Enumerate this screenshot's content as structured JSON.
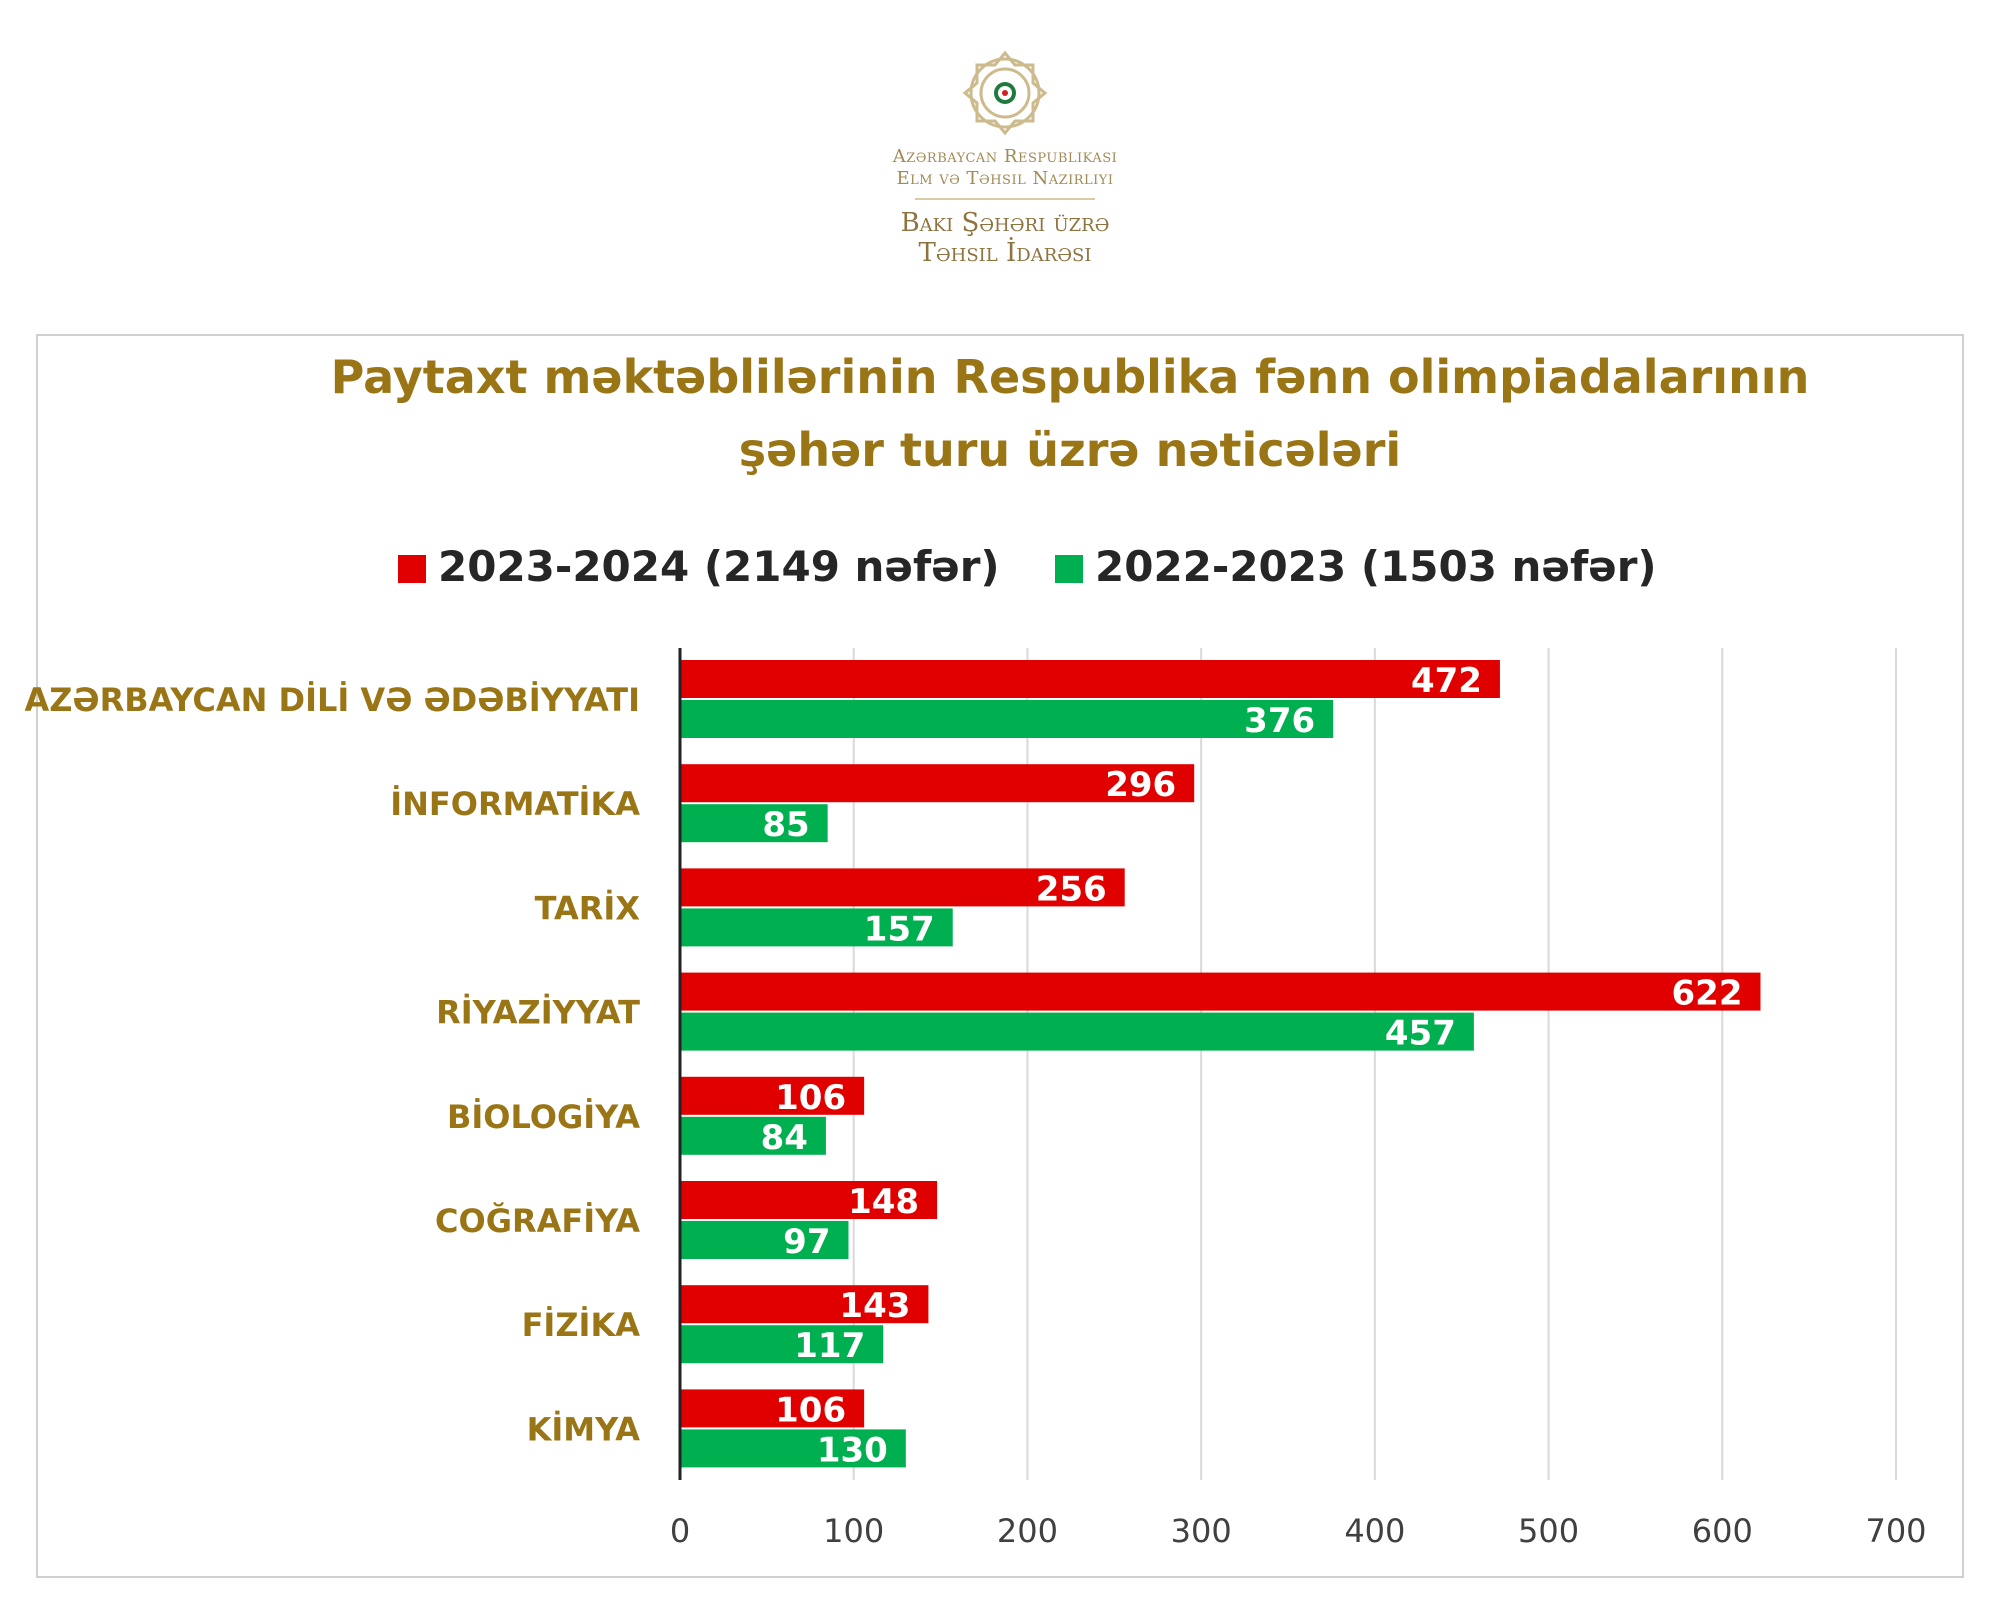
{
  "logo": {
    "line1": "Azərbaycan Respublikası",
    "line2": "Elm və Təhsil Nazirliyi",
    "line3": "Bakı Şəhəri üzrə",
    "line4": "Təhsil İdarəsi"
  },
  "chart_data": {
    "type": "bar",
    "orientation": "horizontal",
    "title": "Paytaxt məktəblilərinin Respublika fənn olimpiadalarının şəhər turu üzrə nəticələri",
    "title_lines": [
      "Paytaxt məktəblilərinin Respublika fənn olimpiadalarının",
      "şəhər turu üzrə nəticələri"
    ],
    "categories": [
      "AZƏRBAYCAN DİLİ VƏ ƏDƏBİYYATI",
      "İNFORMATİKA",
      "TARİX",
      "RİYAZİYYAT",
      "BİOLOGİYA",
      "COĞRAFİYA",
      "FİZİKA",
      "KİMYA"
    ],
    "series": [
      {
        "name": "2023-2024 (2149 nəfər)",
        "color": "#e00000",
        "values": [
          472,
          296,
          256,
          622,
          106,
          148,
          143,
          106
        ]
      },
      {
        "name": "2022-2023 (1503 nəfər)",
        "color": "#00b050",
        "values": [
          376,
          85,
          157,
          457,
          84,
          97,
          117,
          130
        ]
      }
    ],
    "xlim": [
      0,
      700
    ],
    "xticks": [
      "0",
      "100",
      "200",
      "300",
      "400",
      "500",
      "600",
      "700"
    ],
    "grid": "vertical",
    "legend": "top",
    "data_labels": true,
    "xlabel": "",
    "ylabel": ""
  }
}
